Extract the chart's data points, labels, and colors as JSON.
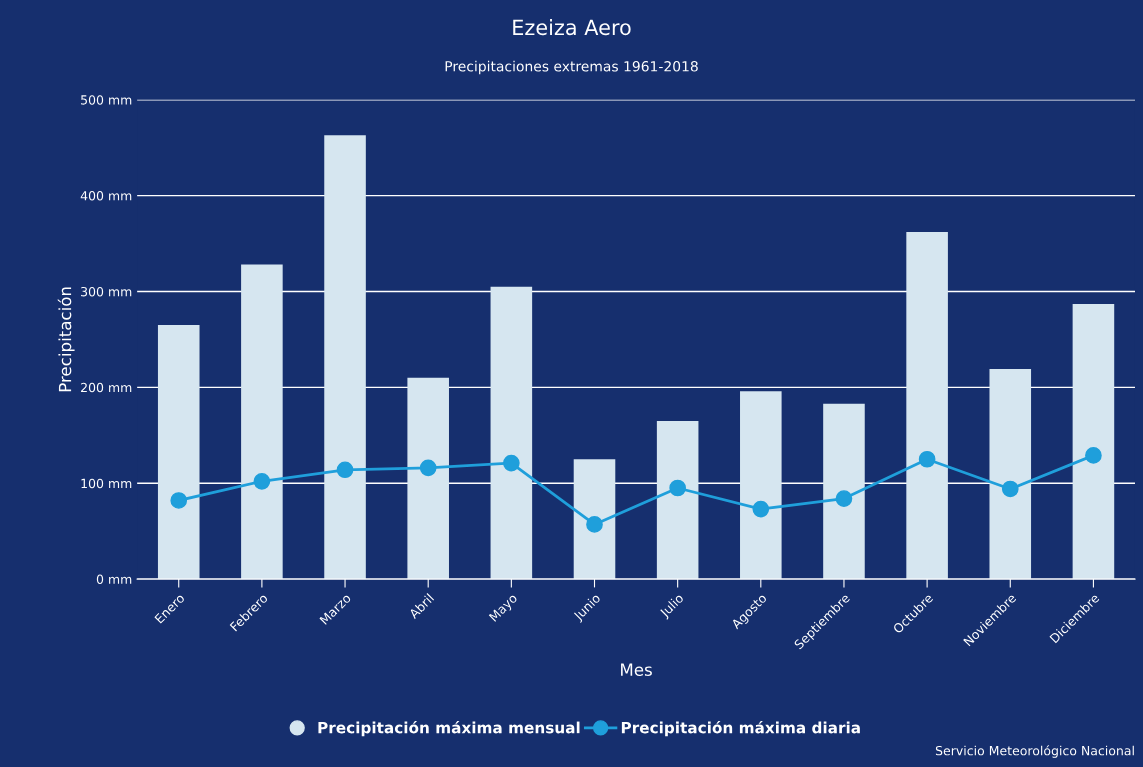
{
  "chart_data": {
    "type": "bar",
    "title": "Ezeiza Aero",
    "subtitle": "Precipitaciones extremas 1961-2018",
    "xlabel": "Mes",
    "ylabel": "Precipitación",
    "categories": [
      "Enero",
      "Febrero",
      "Marzo",
      "Abril",
      "Mayo",
      "Junio",
      "Julio",
      "Agosto",
      "Septiembre",
      "Octubre",
      "Noviembre",
      "Diciembre"
    ],
    "series": [
      {
        "name": "Precipitación máxima mensual",
        "color": "#d6e6f0",
        "values": [
          265,
          328,
          463,
          210,
          305,
          125,
          165,
          196,
          183,
          362,
          219,
          287
        ]
      },
      {
        "name": "Precipitación máxima diaria",
        "type": "line",
        "color": "#1f9fdb",
        "marker": "circle",
        "values": [
          82,
          102,
          114,
          116,
          121,
          57,
          95,
          73,
          84,
          125,
          94,
          129
        ]
      }
    ],
    "ylim": [
      0,
      500
    ],
    "yticks": [
      {
        "value": 0,
        "label": "0 mm"
      },
      {
        "value": 100,
        "label": "100 mm"
      },
      {
        "value": 200,
        "label": "200 mm"
      },
      {
        "value": 300,
        "label": "300 mm"
      },
      {
        "value": 400,
        "label": "400 mm"
      },
      {
        "value": 500,
        "label": "500 mm"
      }
    ],
    "grid": "y",
    "legend": "bottom",
    "annotations": [
      "Servicio Meteorológico Nacional"
    ]
  }
}
